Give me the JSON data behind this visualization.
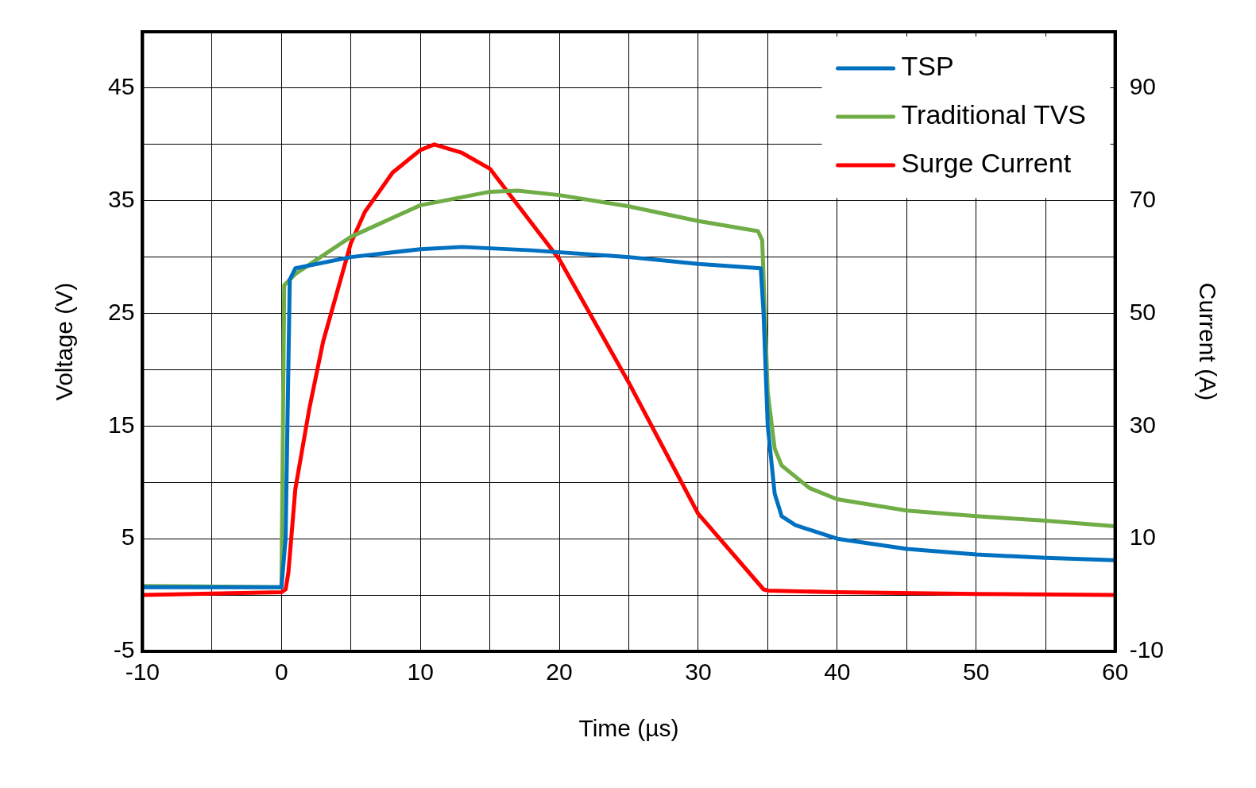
{
  "chart_data": {
    "type": "line",
    "xlabel": "Time (µs)",
    "ylabel": "Voltage (V)",
    "y2label": "Current (A)",
    "xlim": [
      -10,
      60
    ],
    "xticks": [
      -10,
      {
        "value": -5,
        "label": null
      },
      0,
      {
        "value": 5,
        "label": null
      },
      10,
      {
        "value": 15,
        "label": null
      },
      20,
      {
        "value": 25,
        "label": null
      },
      30,
      {
        "value": 35,
        "label": null
      },
      40,
      {
        "value": 45,
        "label": null
      },
      50,
      {
        "value": 55,
        "label": null
      },
      60
    ],
    "ylim": [
      -5,
      50
    ],
    "yticks": [
      -5,
      {
        "value": 0,
        "label": null
      },
      5,
      {
        "value": 10,
        "label": null
      },
      15,
      {
        "value": 20,
        "label": null
      },
      25,
      {
        "value": 30,
        "label": null
      },
      35,
      {
        "value": 40,
        "label": null
      },
      45,
      {
        "value": 50,
        "label": null
      }
    ],
    "y2lim": [
      -10,
      100
    ],
    "y2ticks": [
      -10,
      10,
      30,
      50,
      70,
      90
    ],
    "grid": true,
    "legend": "top right",
    "marker": "none",
    "line_style": "solid",
    "series": [
      {
        "name": "TSP",
        "color": "#0070c0",
        "x": [
          -10,
          0,
          0.3,
          0.6,
          1,
          5,
          10,
          13,
          18,
          25,
          30,
          34.5,
          34.7,
          35,
          35.5,
          36,
          37,
          40,
          45,
          50,
          55,
          60
        ],
        "values": [
          0.7,
          0.7,
          5,
          28,
          29,
          30,
          30.7,
          30.9,
          30.6,
          30,
          29.4,
          29,
          25,
          15,
          9,
          7,
          6.2,
          5,
          4.1,
          3.6,
          3.3,
          3.1
        ]
      },
      {
        "name": "Traditional TVS",
        "color": "#70ad47",
        "x": [
          -10,
          0,
          0.2,
          1,
          5,
          10,
          15,
          17,
          20,
          25,
          30,
          34.3,
          34.6,
          35,
          35.5,
          36,
          38,
          40,
          45,
          50,
          55,
          60
        ],
        "values": [
          0.8,
          0.7,
          27.5,
          28.5,
          31.8,
          34.6,
          35.8,
          35.9,
          35.5,
          34.5,
          33.2,
          32.3,
          31.5,
          18,
          13,
          11.5,
          9.5,
          8.5,
          7.5,
          7,
          6.6,
          6.1
        ]
      },
      {
        "name": "Surge Current",
        "color": "#ff0000",
        "axis": "y2",
        "x": [
          -10,
          0,
          0.3,
          0.5,
          1,
          2,
          3,
          5,
          6,
          8,
          10,
          11,
          13,
          15,
          20,
          25,
          30,
          34.7,
          35,
          40,
          50,
          60
        ],
        "values": [
          0,
          0.5,
          1,
          4,
          18.8,
          33,
          45,
          62.5,
          68,
          75,
          79,
          80,
          78.5,
          75.7,
          59.6,
          37.7,
          14.4,
          1,
          0.8,
          0.5,
          0.2,
          0
        ]
      }
    ]
  }
}
